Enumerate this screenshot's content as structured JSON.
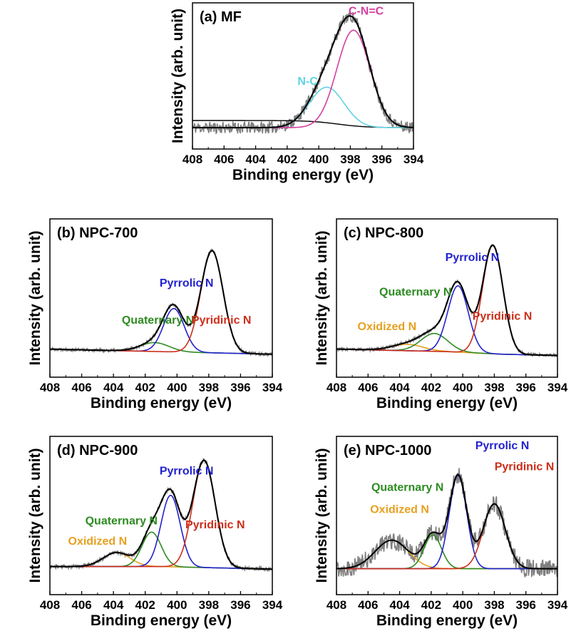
{
  "chart_data": [
    {
      "type": "line",
      "title": "(a) MF",
      "xlabel": "Binding energy (eV)",
      "ylabel": "Intensity (arb. unit)",
      "xlim": [
        408,
        394
      ],
      "ylim": [
        -0.18,
        1.05
      ],
      "xticks": [
        408,
        406,
        404,
        402,
        400,
        398,
        396,
        394
      ],
      "baseline": [
        0.0,
        0.0,
        0.0,
        0.0,
        0.0
      ],
      "noise": 0.05,
      "seed": 11,
      "sum_color": "#000000",
      "series": [
        {
          "name": "N-C",
          "color": "#5fd3e2",
          "center": 399.5,
          "height": 0.34,
          "width": 1.1
        },
        {
          "name": "C-N=C",
          "color": "#d33fa0",
          "center": 397.8,
          "height": 0.82,
          "width": 1.05
        }
      ],
      "annotations": [
        {
          "text": "N-C",
          "color": "#5fd3e2",
          "x": 400.7,
          "y": 0.36
        },
        {
          "text": "C-N=C",
          "color": "#d33fa0",
          "x": 397.0,
          "y": 0.95
        }
      ]
    },
    {
      "type": "line",
      "title": "(b) NPC-700",
      "xlabel": "Binding energy (eV)",
      "ylabel": "Intensity (arb. unit)",
      "xlim": [
        408,
        394
      ],
      "ylim": [
        -0.22,
        1.02
      ],
      "xticks": [
        408,
        406,
        404,
        402,
        400,
        398,
        396,
        394
      ],
      "baseline": [
        0.0,
        -0.01,
        -0.02,
        -0.03,
        -0.04
      ],
      "noise": 0.012,
      "seed": 22,
      "sum_color": "#000000",
      "series": [
        {
          "name": "Quaternary N",
          "color": "#2e8b22",
          "center": 401.4,
          "height": 0.07,
          "width": 0.9
        },
        {
          "name": "Pyrrolic N",
          "color": "#2222cc",
          "center": 400.2,
          "height": 0.34,
          "width": 0.65
        },
        {
          "name": "Pyridinic N",
          "color": "#cc2e1a",
          "center": 397.8,
          "height": 0.8,
          "width": 0.7
        }
      ],
      "annotations": [
        {
          "text": "Pyrrolic N",
          "color": "#2222cc",
          "x": 399.4,
          "y": 0.49
        },
        {
          "text": "Quaternary N",
          "color": "#2e8b22",
          "x": 401.2,
          "y": 0.2
        },
        {
          "text": "Pyridinic N",
          "color": "#cc2e1a",
          "x": 397.2,
          "y": 0.2
        }
      ]
    },
    {
      "type": "line",
      "title": "(c) NPC-800",
      "xlabel": "Binding energy (eV)",
      "ylabel": "Intensity (arb. unit)",
      "xlim": [
        408,
        394
      ],
      "ylim": [
        -0.22,
        1.02
      ],
      "xticks": [
        408,
        406,
        404,
        402,
        400,
        398,
        396,
        394
      ],
      "baseline": [
        0.0,
        -0.01,
        -0.02,
        -0.04,
        -0.05
      ],
      "noise": 0.012,
      "seed": 33,
      "sum_color": "#000000",
      "series": [
        {
          "name": "Oxidized N",
          "color": "#e6a020",
          "center": 403.5,
          "height": 0.05,
          "width": 1.0
        },
        {
          "name": "Quaternary N",
          "color": "#2e8b22",
          "center": 401.8,
          "height": 0.14,
          "width": 0.85
        },
        {
          "name": "Pyrrolic N",
          "color": "#2222cc",
          "center": 400.3,
          "height": 0.52,
          "width": 0.65
        },
        {
          "name": "Pyridinic N",
          "color": "#cc2e1a",
          "center": 398.1,
          "height": 0.85,
          "width": 0.65
        }
      ],
      "annotations": [
        {
          "text": "Pyrrolic N",
          "color": "#2222cc",
          "x": 399.4,
          "y": 0.69
        },
        {
          "text": "Quaternary N",
          "color": "#2e8b22",
          "x": 403.0,
          "y": 0.42
        },
        {
          "text": "Oxidized N",
          "color": "#e6a020",
          "x": 404.8,
          "y": 0.15
        },
        {
          "text": "Pyridinic N",
          "color": "#cc2e1a",
          "x": 397.5,
          "y": 0.23
        }
      ]
    },
    {
      "type": "line",
      "title": "(d) NPC-900",
      "xlabel": "Binding energy (eV)",
      "ylabel": "Intensity (arb. unit)",
      "xlim": [
        408,
        394
      ],
      "ylim": [
        -0.22,
        1.02
      ],
      "xticks": [
        408,
        406,
        404,
        402,
        400,
        398,
        396,
        394
      ],
      "baseline": [
        0.0,
        0.0,
        0.0,
        -0.01,
        -0.02
      ],
      "noise": 0.015,
      "seed": 44,
      "sum_color": "#000000",
      "series": [
        {
          "name": "Oxidized N",
          "color": "#e6a020",
          "center": 403.8,
          "height": 0.11,
          "width": 0.85
        },
        {
          "name": "Quaternary N",
          "color": "#2e8b22",
          "center": 401.6,
          "height": 0.27,
          "width": 0.6
        },
        {
          "name": "Pyrrolic N",
          "color": "#2222cc",
          "center": 400.4,
          "height": 0.56,
          "width": 0.6
        },
        {
          "name": "Pyridinic N",
          "color": "#cc2e1a",
          "center": 398.3,
          "height": 0.84,
          "width": 0.7
        }
      ],
      "annotations": [
        {
          "text": "Pyrrolic N",
          "color": "#2222cc",
          "x": 399.4,
          "y": 0.72
        },
        {
          "text": "Quaternary N",
          "color": "#2e8b22",
          "x": 403.5,
          "y": 0.33
        },
        {
          "text": "Oxidized N",
          "color": "#e6a020",
          "x": 405.0,
          "y": 0.17
        },
        {
          "text": "Pyridinic N",
          "color": "#cc2e1a",
          "x": 397.6,
          "y": 0.3
        }
      ]
    },
    {
      "type": "line",
      "title": "(e) NPC-1000",
      "xlabel": "Binding energy (eV)",
      "ylabel": "Intensity (arb. unit)",
      "xlim": [
        408,
        394
      ],
      "ylim": [
        -0.2,
        1.02
      ],
      "xticks": [
        408,
        406,
        404,
        402,
        400,
        398,
        396,
        394
      ],
      "baseline": [
        0.0,
        0.0,
        0.0,
        0.0,
        0.0
      ],
      "noise": 0.07,
      "seed": 55,
      "sum_color": "#000000",
      "series": [
        {
          "name": "Oxidized N",
          "color": "#e6a020",
          "center": 404.5,
          "height": 0.22,
          "width": 1.05
        },
        {
          "name": "Quaternary N",
          "color": "#2e8b22",
          "center": 401.9,
          "height": 0.26,
          "width": 0.55
        },
        {
          "name": "Pyrrolic N",
          "color": "#2222cc",
          "center": 400.3,
          "height": 0.72,
          "width": 0.55
        },
        {
          "name": "Pyridinic N",
          "color": "#cc2e1a",
          "center": 398.0,
          "height": 0.5,
          "width": 0.7
        }
      ],
      "annotations": [
        {
          "text": "Pyrrolic N",
          "color": "#2222cc",
          "x": 397.5,
          "y": 0.92
        },
        {
          "text": "Quaternary N",
          "color": "#2e8b22",
          "x": 403.5,
          "y": 0.6
        },
        {
          "text": "Oxidized N",
          "color": "#e6a020",
          "x": 404.0,
          "y": 0.43
        },
        {
          "text": "Pyridinic N",
          "color": "#cc2e1a",
          "x": 396.1,
          "y": 0.76
        }
      ]
    }
  ]
}
